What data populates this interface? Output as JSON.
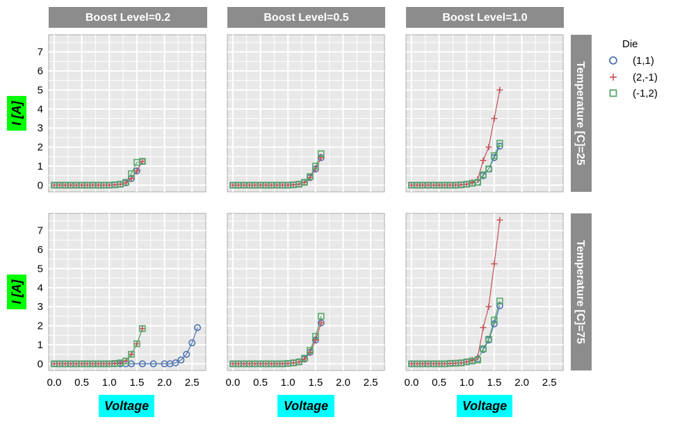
{
  "chart_data": {
    "type": "scatter",
    "facet_rows": {
      "label": "Temperature [C]",
      "values": [
        "25",
        "75"
      ]
    },
    "facet_cols": {
      "label": "Boost Level",
      "values": [
        "0.2",
        "0.5",
        "1.0"
      ]
    },
    "col_strip_labels": [
      "Boost Level=0.2",
      "Boost Level=0.5",
      "Boost Level=1.0"
    ],
    "row_strip_labels": [
      "Temperature [C]=25",
      "Temperature [C]=75"
    ],
    "xlabel": "Voltage",
    "ylabel": "I [A]",
    "xlim": [
      -0.1,
      2.75
    ],
    "ylim": [
      -0.35,
      7.9
    ],
    "xticks": [
      "0.0",
      "0.5",
      "1.0",
      "1.5",
      "2.0",
      "2.5"
    ],
    "yticks": [
      "0",
      "1",
      "2",
      "3",
      "4",
      "5",
      "6",
      "7"
    ],
    "grid": true,
    "legend": {
      "title": "Die",
      "position": "right",
      "entries": [
        {
          "label": "(1,1)",
          "color": "#4c72b0",
          "marker": "circle"
        },
        {
          "label": "(2,-1)",
          "color": "#c44e52",
          "marker": "plus"
        },
        {
          "label": "(-1,2)",
          "color": "#55a868",
          "marker": "square"
        }
      ]
    },
    "x": [
      0,
      0.1,
      0.2,
      0.3,
      0.4,
      0.5,
      0.6,
      0.7,
      0.8,
      0.9,
      1.0,
      1.1,
      1.2,
      1.3,
      1.4,
      1.5,
      1.6
    ],
    "panels": [
      {
        "row": 0,
        "col": 0,
        "series": [
          {
            "die": "(1,1)",
            "x": [
              0,
              0.1,
              0.2,
              0.3,
              0.4,
              0.5,
              0.6,
              0.7,
              0.8,
              0.9,
              1.0,
              1.1,
              1.2,
              1.3,
              1.4,
              1.5,
              1.6
            ],
            "y": [
              0,
              0,
              0,
              0,
              0,
              0,
              0,
              0,
              0,
              0,
              0,
              0.02,
              0.05,
              0.12,
              0.35,
              0.75,
              1.25
            ]
          },
          {
            "die": "(2,-1)",
            "x": [
              0,
              0.1,
              0.2,
              0.3,
              0.4,
              0.5,
              0.6,
              0.7,
              0.8,
              0.9,
              1.0,
              1.1,
              1.2,
              1.3,
              1.4,
              1.5,
              1.6
            ],
            "y": [
              0,
              0,
              0,
              0,
              0,
              0,
              0,
              0,
              0,
              0,
              0,
              0.02,
              0.05,
              0.12,
              0.35,
              0.75,
              1.25
            ]
          },
          {
            "die": "(-1,2)",
            "x": [
              0,
              0.1,
              0.2,
              0.3,
              0.4,
              0.5,
              0.6,
              0.7,
              0.8,
              0.9,
              1.0,
              1.1,
              1.2,
              1.3,
              1.4,
              1.5,
              1.6
            ],
            "y": [
              0,
              0,
              0,
              0,
              0,
              0,
              0,
              0,
              0,
              0,
              0,
              0.02,
              0.05,
              0.15,
              0.6,
              1.2,
              1.25
            ]
          }
        ]
      },
      {
        "row": 0,
        "col": 1,
        "series": [
          {
            "die": "(1,1)",
            "x": [
              0,
              0.1,
              0.2,
              0.3,
              0.4,
              0.5,
              0.6,
              0.7,
              0.8,
              0.9,
              1.0,
              1.1,
              1.2,
              1.3,
              1.4,
              1.5,
              1.6
            ],
            "y": [
              0,
              0,
              0,
              0,
              0,
              0,
              0,
              0,
              0,
              0,
              0,
              0.02,
              0.05,
              0.15,
              0.4,
              0.85,
              1.45
            ]
          },
          {
            "die": "(2,-1)",
            "x": [
              0,
              0.1,
              0.2,
              0.3,
              0.4,
              0.5,
              0.6,
              0.7,
              0.8,
              0.9,
              1.0,
              1.1,
              1.2,
              1.3,
              1.4,
              1.5,
              1.6
            ],
            "y": [
              0,
              0,
              0,
              0,
              0,
              0,
              0,
              0,
              0,
              0,
              0,
              0.02,
              0.05,
              0.15,
              0.4,
              0.85,
              1.45
            ]
          },
          {
            "die": "(-1,2)",
            "x": [
              0,
              0.1,
              0.2,
              0.3,
              0.4,
              0.5,
              0.6,
              0.7,
              0.8,
              0.9,
              1.0,
              1.1,
              1.2,
              1.3,
              1.4,
              1.5,
              1.6
            ],
            "y": [
              0,
              0,
              0,
              0,
              0,
              0,
              0,
              0,
              0,
              0,
              0,
              0.02,
              0.05,
              0.15,
              0.45,
              1.0,
              1.65
            ]
          }
        ]
      },
      {
        "row": 0,
        "col": 2,
        "series": [
          {
            "die": "(1,1)",
            "x": [
              0,
              0.1,
              0.2,
              0.3,
              0.4,
              0.5,
              0.6,
              0.7,
              0.8,
              0.9,
              1.0,
              1.1,
              1.2,
              1.3,
              1.4,
              1.5,
              1.6
            ],
            "y": [
              0,
              0,
              0,
              0,
              0,
              0,
              0,
              0,
              0,
              0.02,
              0.05,
              0.1,
              0.15,
              0.5,
              0.85,
              1.45,
              2.05
            ]
          },
          {
            "die": "(2,-1)",
            "x": [
              0,
              0.1,
              0.2,
              0.3,
              0.4,
              0.5,
              0.6,
              0.7,
              0.8,
              0.9,
              1.0,
              1.1,
              1.2,
              1.3,
              1.4,
              1.5,
              1.6
            ],
            "y": [
              0,
              0,
              0,
              0,
              0,
              0,
              0,
              0,
              0,
              0.02,
              0.05,
              0.15,
              0.3,
              1.3,
              2.0,
              3.5,
              5.0
            ]
          },
          {
            "die": "(-1,2)",
            "x": [
              0,
              0.1,
              0.2,
              0.3,
              0.4,
              0.5,
              0.6,
              0.7,
              0.8,
              0.9,
              1.0,
              1.1,
              1.2,
              1.3,
              1.4,
              1.5,
              1.6
            ],
            "y": [
              0,
              0,
              0,
              0,
              0,
              0,
              0,
              0,
              0,
              0.02,
              0.05,
              0.1,
              0.15,
              0.55,
              0.85,
              1.55,
              2.2
            ]
          }
        ]
      },
      {
        "row": 1,
        "col": 0,
        "series": [
          {
            "die": "(1,1)",
            "x": [
              0,
              0.1,
              0.2,
              0.3,
              0.4,
              0.5,
              0.6,
              0.7,
              0.8,
              0.9,
              1.0,
              1.1,
              1.2,
              1.3,
              1.4,
              1.6,
              1.8,
              2.0,
              2.1,
              2.2,
              2.3,
              2.4,
              2.5,
              2.6
            ],
            "y": [
              0,
              0,
              0,
              0,
              0,
              0,
              0,
              0,
              0,
              0,
              0,
              0,
              0,
              0,
              0,
              0,
              0,
              0,
              0,
              0.05,
              0.2,
              0.5,
              1.1,
              1.9
            ]
          },
          {
            "die": "(2,-1)",
            "x": [
              0,
              0.1,
              0.2,
              0.3,
              0.4,
              0.5,
              0.6,
              0.7,
              0.8,
              0.9,
              1.0,
              1.1,
              1.2,
              1.3,
              1.4,
              1.5,
              1.6
            ],
            "y": [
              0,
              0,
              0,
              0,
              0,
              0,
              0,
              0,
              0,
              0,
              0,
              0.02,
              0.05,
              0.15,
              0.5,
              1.05,
              1.85
            ]
          },
          {
            "die": "(-1,2)",
            "x": [
              0,
              0.1,
              0.2,
              0.3,
              0.4,
              0.5,
              0.6,
              0.7,
              0.8,
              0.9,
              1.0,
              1.1,
              1.2,
              1.3,
              1.4,
              1.5,
              1.6
            ],
            "y": [
              0,
              0,
              0,
              0,
              0,
              0,
              0,
              0,
              0,
              0,
              0,
              0.02,
              0.05,
              0.15,
              0.5,
              1.05,
              1.85
            ]
          }
        ]
      },
      {
        "row": 1,
        "col": 1,
        "series": [
          {
            "die": "(1,1)",
            "x": [
              0,
              0.1,
              0.2,
              0.3,
              0.4,
              0.5,
              0.6,
              0.7,
              0.8,
              0.9,
              1.0,
              1.1,
              1.2,
              1.3,
              1.4,
              1.5,
              1.6
            ],
            "y": [
              0,
              0,
              0,
              0,
              0,
              0,
              0,
              0,
              0,
              0,
              0.02,
              0.05,
              0.1,
              0.25,
              0.6,
              1.25,
              2.15
            ]
          },
          {
            "die": "(2,-1)",
            "x": [
              0,
              0.1,
              0.2,
              0.3,
              0.4,
              0.5,
              0.6,
              0.7,
              0.8,
              0.9,
              1.0,
              1.1,
              1.2,
              1.3,
              1.4,
              1.5,
              1.6
            ],
            "y": [
              0,
              0,
              0,
              0,
              0,
              0,
              0,
              0,
              0,
              0,
              0.02,
              0.05,
              0.1,
              0.25,
              0.6,
              1.25,
              2.15
            ]
          },
          {
            "die": "(-1,2)",
            "x": [
              0,
              0.1,
              0.2,
              0.3,
              0.4,
              0.5,
              0.6,
              0.7,
              0.8,
              0.9,
              1.0,
              1.1,
              1.2,
              1.3,
              1.4,
              1.5,
              1.6
            ],
            "y": [
              0,
              0,
              0,
              0,
              0,
              0,
              0,
              0,
              0,
              0,
              0.02,
              0.05,
              0.1,
              0.3,
              0.7,
              1.45,
              2.5
            ]
          }
        ]
      },
      {
        "row": 1,
        "col": 2,
        "series": [
          {
            "die": "(1,1)",
            "x": [
              0,
              0.1,
              0.2,
              0.3,
              0.4,
              0.5,
              0.6,
              0.7,
              0.8,
              0.9,
              1.0,
              1.1,
              1.2,
              1.3,
              1.4,
              1.5,
              1.6
            ],
            "y": [
              0,
              0,
              0,
              0,
              0,
              0,
              0,
              0.02,
              0.03,
              0.05,
              0.1,
              0.15,
              0.25,
              0.75,
              1.25,
              2.1,
              3.05
            ]
          },
          {
            "die": "(2,-1)",
            "x": [
              0,
              0.1,
              0.2,
              0.3,
              0.4,
              0.5,
              0.6,
              0.7,
              0.8,
              0.9,
              1.0,
              1.1,
              1.2,
              1.3,
              1.4,
              1.5,
              1.6
            ],
            "y": [
              0,
              0,
              0,
              0,
              0,
              0,
              0,
              0.02,
              0.03,
              0.05,
              0.1,
              0.2,
              0.35,
              1.9,
              3.0,
              5.25,
              7.55
            ]
          },
          {
            "die": "(-1,2)",
            "x": [
              0,
              0.1,
              0.2,
              0.3,
              0.4,
              0.5,
              0.6,
              0.7,
              0.8,
              0.9,
              1.0,
              1.1,
              1.2,
              1.3,
              1.4,
              1.5,
              1.6
            ],
            "y": [
              0,
              0,
              0,
              0,
              0,
              0,
              0,
              0.02,
              0.03,
              0.05,
              0.1,
              0.15,
              0.2,
              0.8,
              1.3,
              2.3,
              3.3
            ]
          }
        ]
      }
    ]
  }
}
